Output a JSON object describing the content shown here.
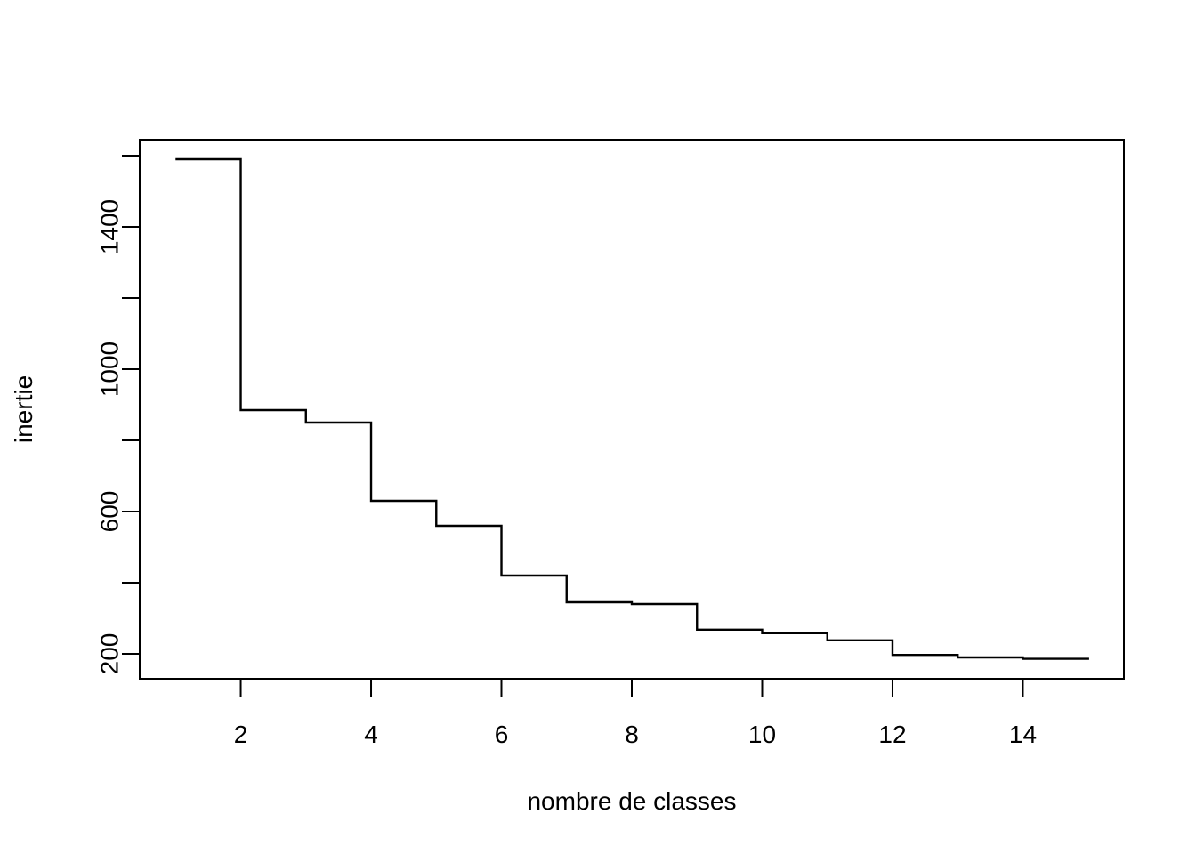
{
  "chart_data": {
    "type": "line",
    "style": "step",
    "title": "",
    "xlabel": "nombre de classes",
    "ylabel": "inertie",
    "x": [
      1,
      2,
      3,
      4,
      5,
      6,
      7,
      8,
      9,
      10,
      11,
      12,
      13,
      14,
      15
    ],
    "values": [
      1590,
      885,
      850,
      630,
      560,
      420,
      345,
      340,
      268,
      258,
      238,
      197,
      190,
      186,
      183
    ],
    "xlim": [
      0.45,
      15.55
    ],
    "ylim": [
      130,
      1645
    ],
    "xticks": [
      2,
      4,
      6,
      8,
      10,
      12,
      14
    ],
    "yticks": [
      200,
      400,
      600,
      800,
      1000,
      1200,
      1400,
      1600
    ],
    "yticklabels": [
      "200",
      "",
      "600",
      "",
      "1000",
      "",
      "1400",
      ""
    ],
    "grid": false,
    "line_color": "#000000"
  }
}
